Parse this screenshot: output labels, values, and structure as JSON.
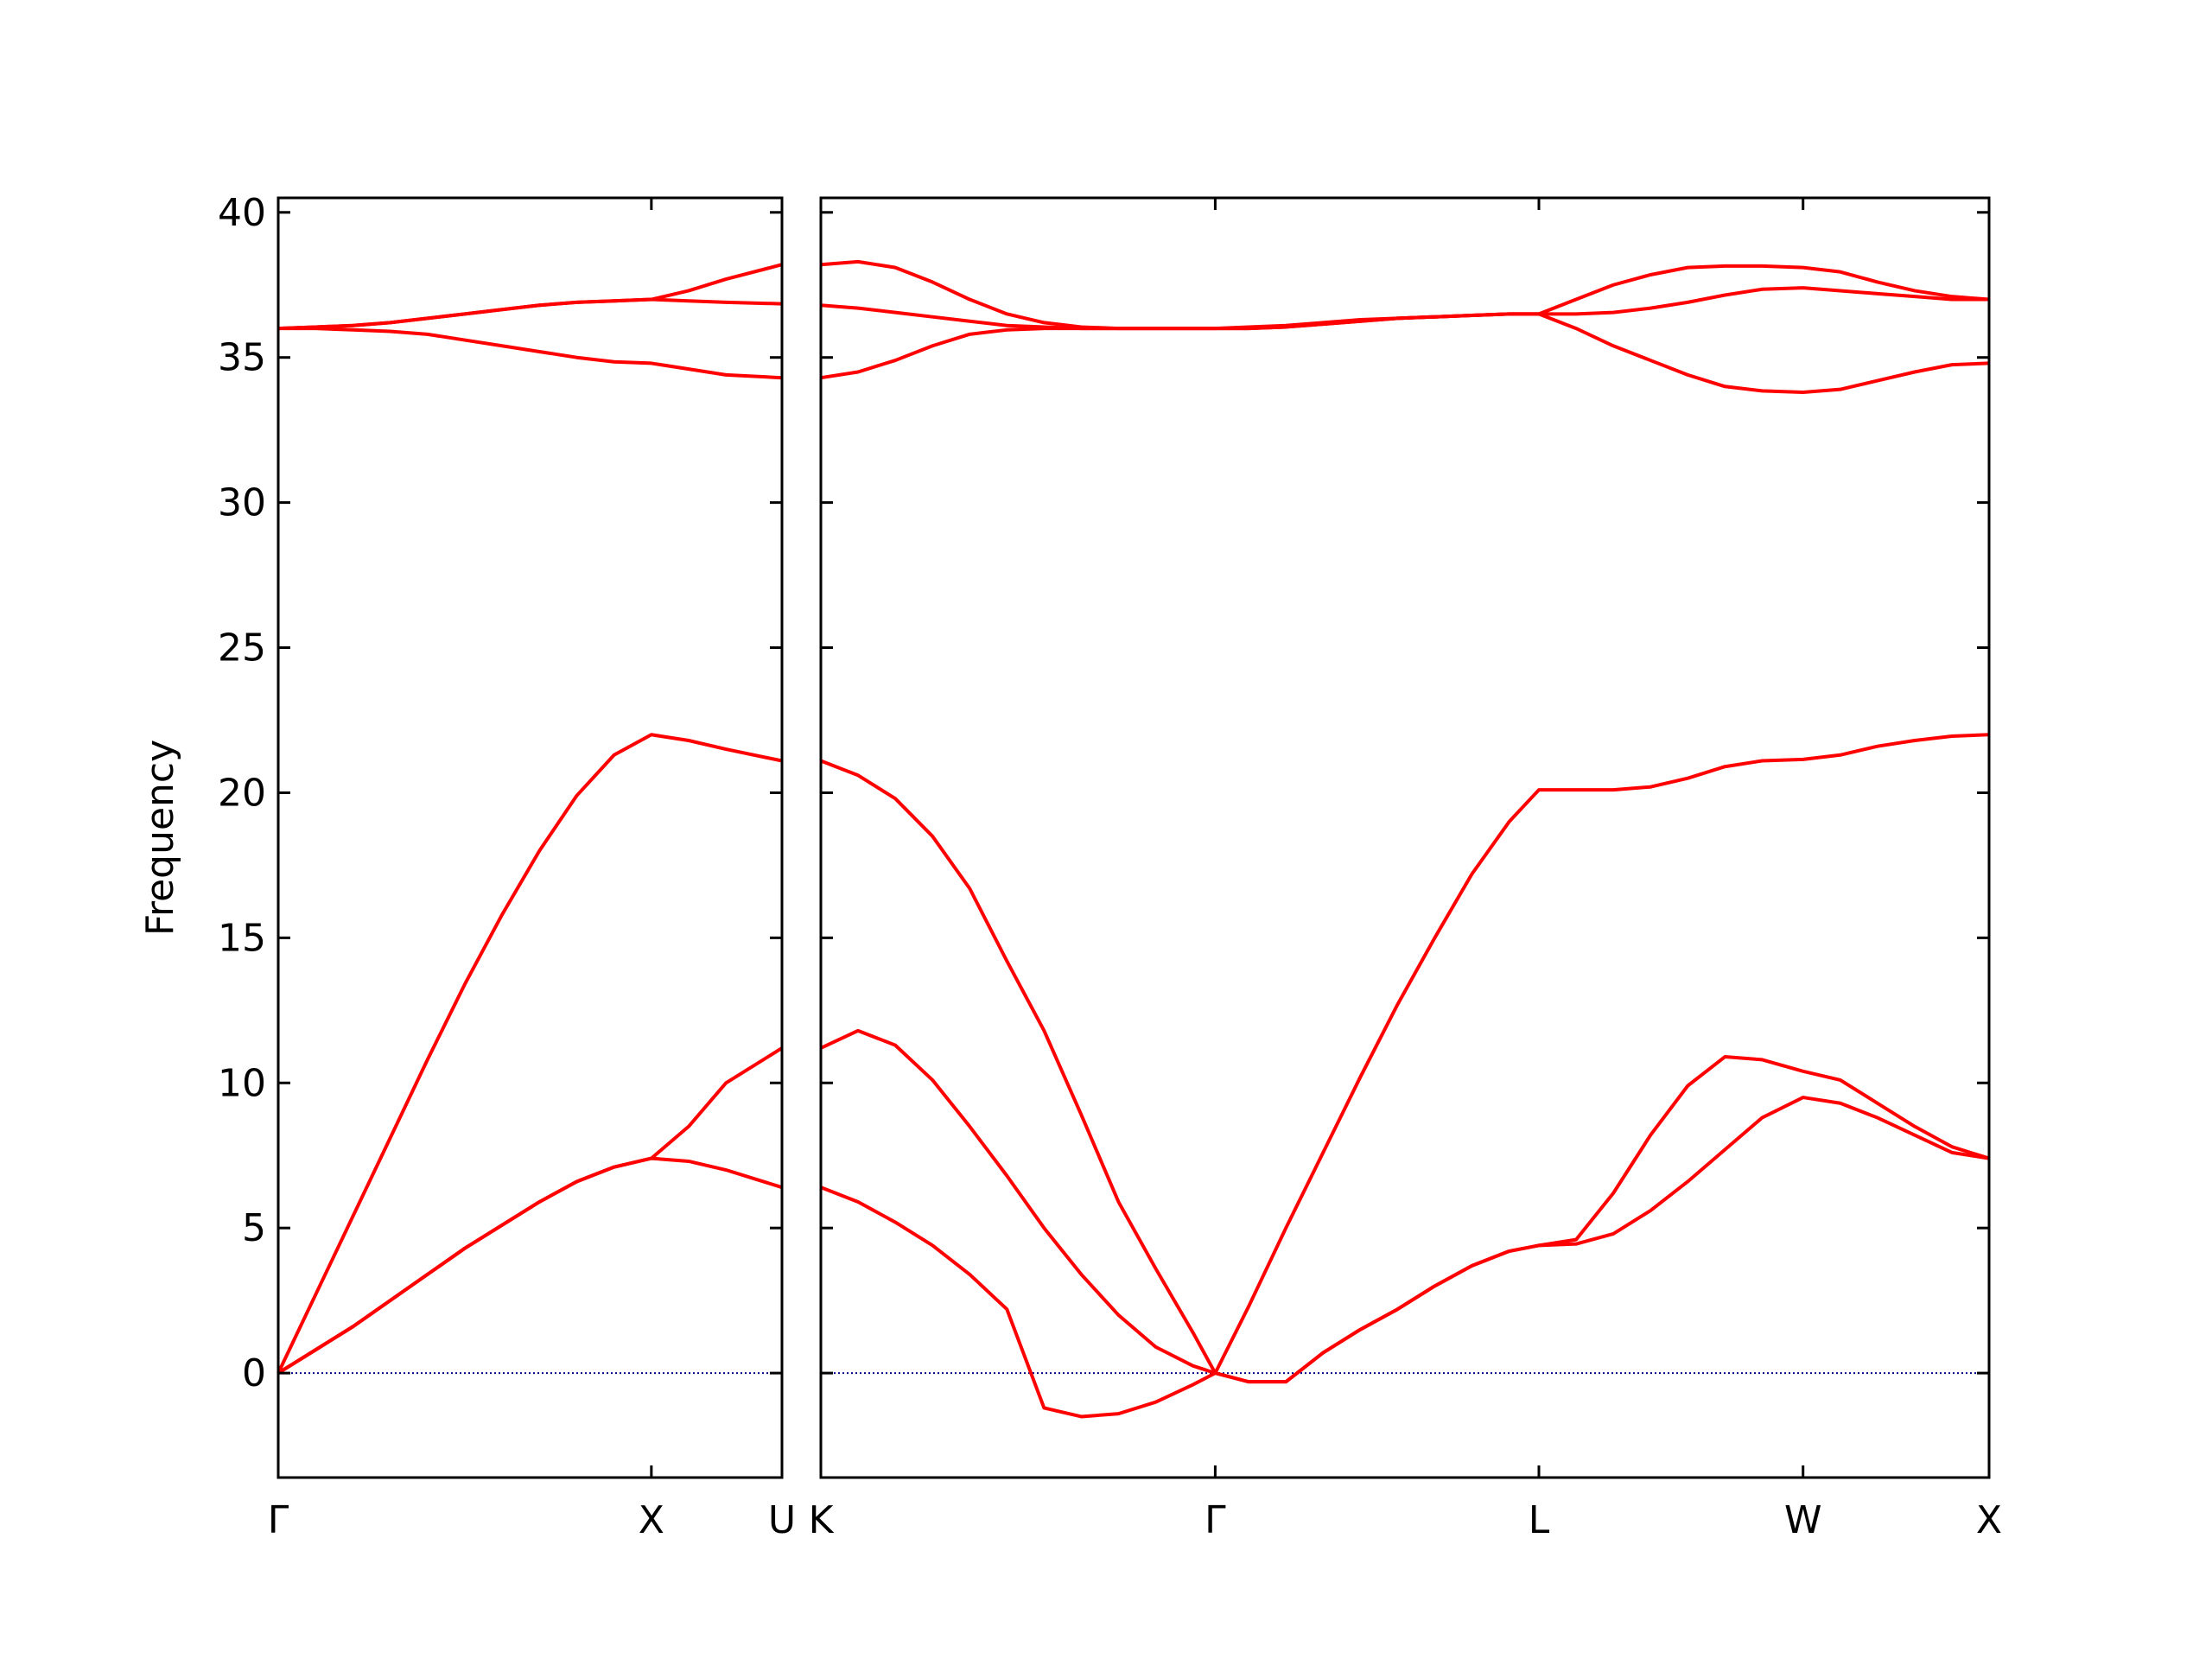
{
  "chart_data": [
    {
      "type": "line",
      "ylabel": "Frequency",
      "x": [
        0,
        0.1,
        0.2,
        0.3,
        0.4,
        0.5,
        0.6,
        0.7,
        0.8,
        0.9,
        1.0,
        1.1,
        1.2,
        1.35
      ],
      "series": [
        {
          "color": "#ff0000",
          "values": [
            0,
            0.8,
            1.6,
            2.5,
            3.4,
            4.3,
            5.1,
            5.9,
            6.6,
            7.1,
            7.4,
            7.3,
            7.0,
            6.4
          ]
        },
        {
          "color": "#ff0000",
          "values": [
            0,
            0.8,
            1.6,
            2.5,
            3.4,
            4.3,
            5.1,
            5.9,
            6.6,
            7.1,
            7.4,
            8.5,
            10.0,
            11.2
          ]
        },
        {
          "color": "#ff0000",
          "values": [
            0,
            2.7,
            5.4,
            8.1,
            10.8,
            13.4,
            15.8,
            18.0,
            19.9,
            21.3,
            22.0,
            21.8,
            21.5,
            21.1
          ]
        },
        {
          "color": "#ff0000",
          "values": [
            36,
            36,
            35.95,
            35.9,
            35.8,
            35.6,
            35.4,
            35.2,
            35.0,
            34.85,
            34.8,
            34.6,
            34.4,
            34.3
          ]
        },
        {
          "color": "#ff0000",
          "values": [
            36,
            36.05,
            36.1,
            36.2,
            36.35,
            36.5,
            36.65,
            36.8,
            36.9,
            36.95,
            37.0,
            36.95,
            36.9,
            36.85
          ]
        },
        {
          "color": "#ff0000",
          "values": [
            36,
            36.05,
            36.1,
            36.2,
            36.35,
            36.5,
            36.65,
            36.8,
            36.9,
            36.95,
            37.0,
            37.3,
            37.7,
            38.2
          ]
        }
      ],
      "xlim": [
        0,
        1.35
      ],
      "ylim": [
        -3.6,
        40.5
      ],
      "xticks": [
        {
          "value": 0,
          "label": "Γ"
        },
        {
          "value": 1.0,
          "label": "X"
        },
        {
          "value": 1.35,
          "label": "U"
        }
      ],
      "yticks": [
        0,
        5,
        10,
        15,
        20,
        25,
        30,
        35,
        40
      ],
      "show_ytick_labels": true,
      "zero_line": {
        "value": 0,
        "color": "#00008b"
      }
    },
    {
      "type": "line",
      "x": [
        0,
        0.1,
        0.2,
        0.3,
        0.4,
        0.5,
        0.6,
        0.7,
        0.8,
        0.9,
        1.0,
        1.06,
        1.15,
        1.25,
        1.35,
        1.45,
        1.55,
        1.65,
        1.75,
        1.85,
        1.93,
        2.03,
        2.13,
        2.23,
        2.33,
        2.43,
        2.53,
        2.64,
        2.74,
        2.84,
        2.94,
        3.04,
        3.14
      ],
      "series": [
        {
          "color": "#ff0000",
          "values": [
            6.4,
            5.9,
            5.2,
            4.4,
            3.4,
            2.2,
            -1.2,
            -1.5,
            -1.4,
            -1.0,
            -0.4,
            0,
            -0.3,
            -0.3,
            0.7,
            1.5,
            2.2,
            3.0,
            3.7,
            4.2,
            4.4,
            4.45,
            4.8,
            5.6,
            6.6,
            7.7,
            8.8,
            9.5,
            9.3,
            8.8,
            8.2,
            7.6,
            7.4
          ]
        },
        {
          "color": "#ff0000",
          "values": [
            11.2,
            11.8,
            11.3,
            10.1,
            8.5,
            6.8,
            5.0,
            3.4,
            2.0,
            0.9,
            0.25,
            0,
            -0.3,
            -0.3,
            0.7,
            1.5,
            2.2,
            3.0,
            3.7,
            4.2,
            4.4,
            4.6,
            6.2,
            8.2,
            9.9,
            10.9,
            10.8,
            10.4,
            10.1,
            9.3,
            8.5,
            7.8,
            7.4
          ]
        },
        {
          "color": "#ff0000",
          "values": [
            21.1,
            20.6,
            19.8,
            18.5,
            16.7,
            14.2,
            11.8,
            8.9,
            5.9,
            3.6,
            1.4,
            0,
            2.3,
            5.0,
            7.6,
            10.2,
            12.7,
            15.0,
            17.2,
            19.0,
            20.1,
            20.1,
            20.1,
            20.2,
            20.5,
            20.9,
            21.1,
            21.15,
            21.3,
            21.6,
            21.8,
            21.95,
            22.0
          ]
        },
        {
          "color": "#ff0000",
          "values": [
            34.3,
            34.5,
            34.9,
            35.4,
            35.8,
            35.95,
            36,
            36,
            36,
            36,
            36,
            36,
            36.05,
            36.1,
            36.2,
            36.3,
            36.35,
            36.4,
            36.45,
            36.5,
            36.5,
            36.0,
            35.4,
            34.9,
            34.4,
            34.0,
            33.85,
            33.8,
            33.9,
            34.2,
            34.5,
            34.75,
            34.8
          ]
        },
        {
          "color": "#ff0000",
          "values": [
            36.8,
            36.7,
            36.55,
            36.4,
            36.25,
            36.1,
            36.05,
            36,
            36,
            36,
            36,
            36,
            36,
            36.05,
            36.15,
            36.25,
            36.35,
            36.4,
            36.45,
            36.5,
            36.5,
            36.5,
            36.55,
            36.7,
            36.9,
            37.15,
            37.35,
            37.4,
            37.3,
            37.2,
            37.1,
            37.0,
            37.0
          ]
        },
        {
          "color": "#ff0000",
          "values": [
            38.2,
            38.3,
            38.1,
            37.6,
            37.0,
            36.5,
            36.2,
            36.05,
            36,
            36,
            36,
            36,
            36,
            36.05,
            36.15,
            36.25,
            36.35,
            36.4,
            36.45,
            36.5,
            36.5,
            37.0,
            37.5,
            37.85,
            38.1,
            38.15,
            38.15,
            38.1,
            37.95,
            37.6,
            37.3,
            37.1,
            37.0
          ]
        }
      ],
      "xlim": [
        0,
        3.14
      ],
      "ylim": [
        -3.6,
        40.5
      ],
      "xticks": [
        {
          "value": 0,
          "label": "K"
        },
        {
          "value": 1.06,
          "label": "Γ"
        },
        {
          "value": 1.93,
          "label": "L"
        },
        {
          "value": 2.64,
          "label": "W"
        },
        {
          "value": 3.14,
          "label": "X"
        }
      ],
      "yticks": [
        0,
        5,
        10,
        15,
        20,
        25,
        30,
        35,
        40
      ],
      "show_ytick_labels": false,
      "zero_line": {
        "value": 0,
        "color": "#00008b"
      }
    }
  ]
}
